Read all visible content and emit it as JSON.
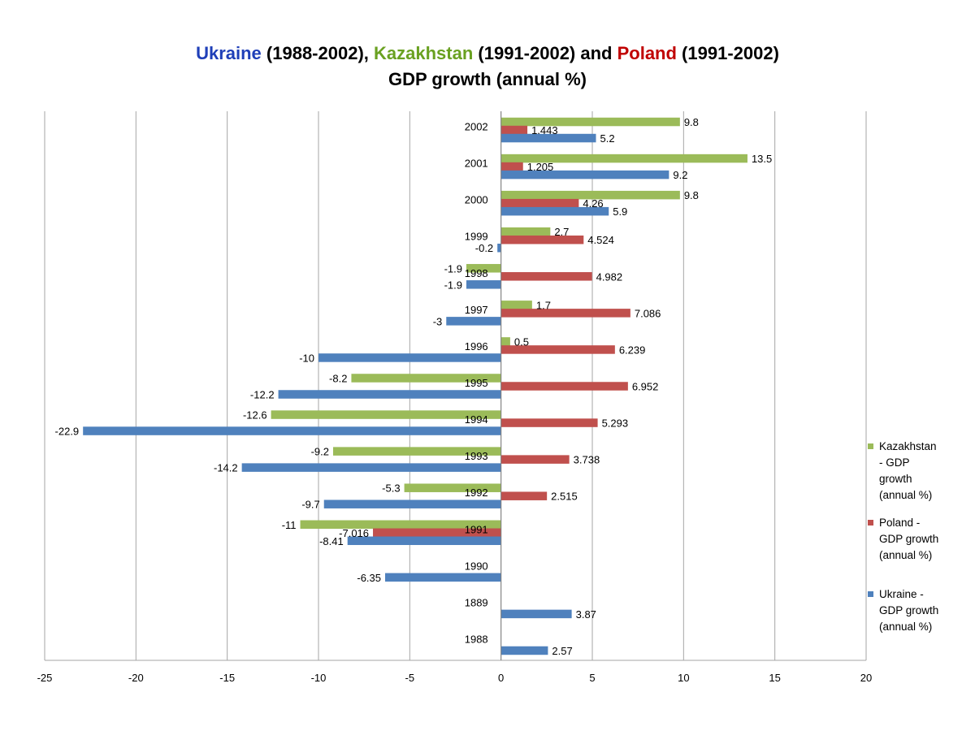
{
  "title": {
    "ukraine": "Ukraine",
    "ukraine_range": " (1988-2002), ",
    "kazakhstan": "Kazakhstan",
    "kazakhstan_range": " (1991-2002) and ",
    "poland": "Poland",
    "poland_range": " (1991-2002)",
    "line2": "GDP growth (annual %)"
  },
  "colors": {
    "ukraine": "#4f81bd",
    "poland": "#c0504d",
    "kazakhstan": "#9bbb59",
    "grid": "#a6a6a6"
  },
  "chart_data": {
    "type": "bar",
    "orientation": "horizontal",
    "title": "Ukraine (1988-2002), Kazakhstan (1991-2002) and Poland (1991-2002) GDP growth (annual %)",
    "xlim": [
      -25,
      20
    ],
    "xticks": [
      -25,
      -20,
      -15,
      -10,
      -5,
      0,
      5,
      10,
      15,
      20
    ],
    "grid": true,
    "legend_position": "right",
    "categories": [
      "2002",
      "2001",
      "2000",
      "1999",
      "1998",
      "1997",
      "1996",
      "1995",
      "1994",
      "1993",
      "1992",
      "1991",
      "1990",
      "1889",
      "1988"
    ],
    "series": [
      {
        "name": "Kazakhstan - GDP growth (annual %)",
        "key": "kazakhstan",
        "values": [
          9.8,
          13.5,
          9.8,
          2.7,
          -1.9,
          1.7,
          0.5,
          -8.2,
          -12.6,
          -9.2,
          -5.3,
          -11,
          null,
          null,
          null
        ],
        "labels": [
          "9.8",
          "13.5",
          "9.8",
          "2.7",
          "-1.9",
          "1.7",
          "0.5",
          "-8.2",
          "-12.6",
          "-9.2",
          "-5.3",
          "-11",
          null,
          null,
          null
        ]
      },
      {
        "name": "Poland - GDP growth (annual %)",
        "key": "poland",
        "values": [
          1.443,
          1.205,
          4.26,
          4.524,
          4.982,
          7.086,
          6.239,
          6.952,
          5.293,
          3.738,
          2.515,
          -7.016,
          null,
          null,
          null
        ],
        "labels": [
          "1.443",
          "1.205",
          "4.26",
          "4.524",
          "4.982",
          "7.086",
          "6.239",
          "6.952",
          "5.293",
          "3.738",
          "2.515",
          "-7.016",
          null,
          null,
          null
        ]
      },
      {
        "name": "Ukraine - GDP growth (annual %)",
        "key": "ukraine",
        "values": [
          5.2,
          9.2,
          5.9,
          -0.2,
          -1.9,
          -3,
          -10,
          -12.2,
          -22.9,
          -14.2,
          -9.7,
          -8.41,
          -6.35,
          3.87,
          2.57
        ],
        "labels": [
          "5.2",
          "9.2",
          "5.9",
          "-0.2",
          "-1.9",
          "-3",
          "-10",
          "-12.2",
          "-22.9",
          "-14.2",
          "-9.7",
          "-8.41",
          "-6.35",
          "3.87",
          "2.57"
        ]
      }
    ]
  },
  "legend": [
    {
      "key": "kazakhstan",
      "lines": [
        "Kazakhstan",
        "- GDP",
        "growth",
        "(annual %)"
      ]
    },
    {
      "key": "poland",
      "lines": [
        "Poland -",
        "GDP growth",
        "(annual %)"
      ]
    },
    {
      "key": "ukraine",
      "lines": [
        "Ukraine -",
        "GDP growth",
        "(annual %)"
      ]
    }
  ]
}
